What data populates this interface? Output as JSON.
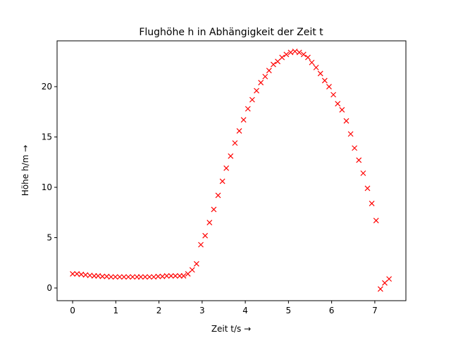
{
  "chart_data": {
    "type": "scatter",
    "title": "Flughöhe h in Abhängigkeit der Zeit t",
    "x_label": "Zeit t/s →",
    "y_label": "Höhe h/m →",
    "series": [
      {
        "color": "#ff0000",
        "marker": "x",
        "x": [
          0,
          0.1,
          0.2,
          0.3,
          0.4,
          0.5,
          0.59,
          0.69,
          0.79,
          0.89,
          0.99,
          1.09,
          1.19,
          1.29,
          1.39,
          1.49,
          1.58,
          1.68,
          1.78,
          1.88,
          1.98,
          2.08,
          2.18,
          2.28,
          2.38,
          2.48,
          2.57,
          2.67,
          2.77,
          2.87,
          2.97,
          3.07,
          3.17,
          3.27,
          3.37,
          3.47,
          3.56,
          3.66,
          3.76,
          3.86,
          3.96,
          4.06,
          4.16,
          4.26,
          4.36,
          4.46,
          4.55,
          4.65,
          4.75,
          4.85,
          4.95,
          5.05,
          5.15,
          5.25,
          5.35,
          5.45,
          5.54,
          5.64,
          5.74,
          5.84,
          5.94,
          6.04,
          6.14,
          6.24,
          6.34,
          6.44,
          6.53,
          6.63,
          6.73,
          6.83,
          6.93,
          7.03,
          7.13,
          7.23,
          7.33
        ],
        "values": [
          1.4,
          1.4,
          1.35,
          1.3,
          1.25,
          1.2,
          1.2,
          1.15,
          1.15,
          1.1,
          1.1,
          1.1,
          1.1,
          1.1,
          1.1,
          1.1,
          1.1,
          1.1,
          1.1,
          1.1,
          1.15,
          1.15,
          1.2,
          1.2,
          1.2,
          1.2,
          1.2,
          1.4,
          1.8,
          2.4,
          4.3,
          5.2,
          6.5,
          7.8,
          9.2,
          10.6,
          11.9,
          13.1,
          14.4,
          15.6,
          16.7,
          17.8,
          18.7,
          19.6,
          20.4,
          21.0,
          21.6,
          22.2,
          22.5,
          22.9,
          23.2,
          23.4,
          23.5,
          23.4,
          23.2,
          22.9,
          22.4,
          21.9,
          21.3,
          20.6,
          20.0,
          19.2,
          18.3,
          17.7,
          16.6,
          15.3,
          13.9,
          12.7,
          11.4,
          9.9,
          8.4,
          6.7,
          -0.1,
          0.5,
          0.9
        ]
      }
    ],
    "xlim": [
      -0.36,
      7.72
    ],
    "ylim": [
      -1.26,
      24.55
    ],
    "xticks": [
      0,
      1,
      2,
      3,
      4,
      5,
      6,
      7
    ],
    "yticks": [
      0,
      5,
      10,
      15,
      20
    ]
  }
}
